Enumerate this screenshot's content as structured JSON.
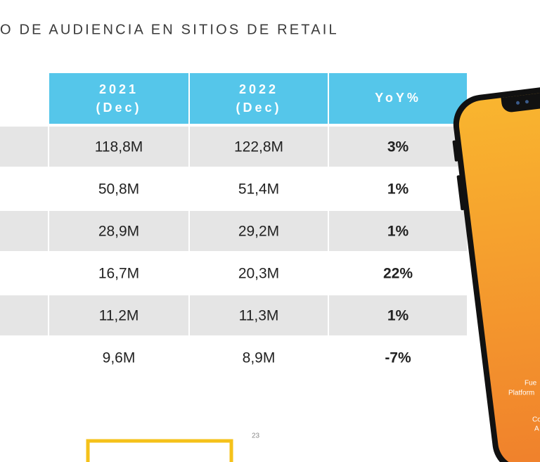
{
  "title": "O DE AUDIENCIA EN SITIOS DE RETAIL",
  "table": {
    "header": [
      [
        "2021",
        "(Dec)"
      ],
      [
        "2022",
        "(Dec)"
      ],
      [
        "YoY%"
      ]
    ],
    "rows": [
      [
        "118,8M",
        "122,8M",
        "3%"
      ],
      [
        "50,8M",
        "51,4M",
        "1%"
      ],
      [
        "28,9M",
        "29,2M",
        "1%"
      ],
      [
        "16,7M",
        "20,3M",
        "22%"
      ],
      [
        "11,2M",
        "11,3M",
        "1%"
      ],
      [
        "9,6M",
        "8,9M",
        "-7%"
      ]
    ]
  },
  "page_number": "23",
  "phone_text": [
    "Fue",
    "Platform",
    "Co",
    "A"
  ]
}
